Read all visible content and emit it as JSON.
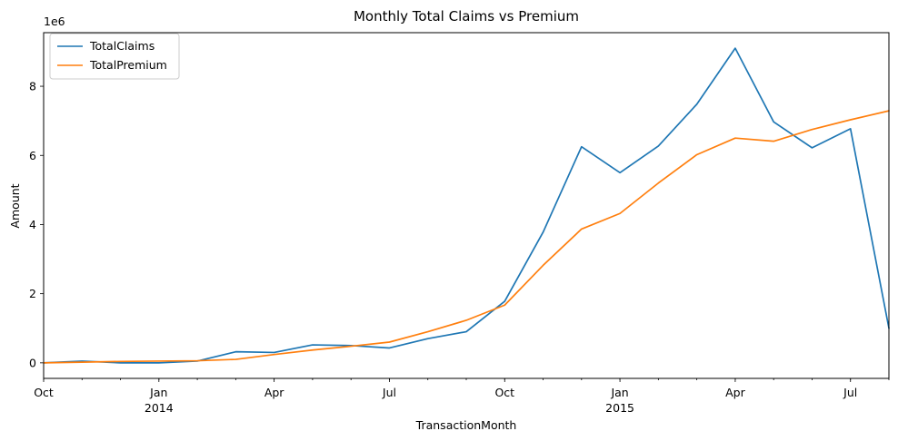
{
  "chart_data": {
    "type": "line",
    "title": "Monthly Total Claims vs Premium",
    "xlabel": "TransactionMonth",
    "ylabel": "Amount",
    "y_offset_label": "1e6",
    "x": [
      "2013-10",
      "2013-11",
      "2013-12",
      "2014-01",
      "2014-02",
      "2014-03",
      "2014-04",
      "2014-05",
      "2014-06",
      "2014-07",
      "2014-08",
      "2014-09",
      "2014-10",
      "2014-11",
      "2014-12",
      "2015-01",
      "2015-02",
      "2015-03",
      "2015-04",
      "2015-05",
      "2015-06",
      "2015-07",
      "2015-08"
    ],
    "series": [
      {
        "name": "TotalClaims",
        "color": "#1f77b4",
        "values": [
          0.0,
          0.05,
          0.0,
          0.0,
          0.05,
          0.32,
          0.3,
          0.52,
          0.5,
          0.43,
          0.7,
          0.9,
          1.78,
          3.78,
          6.25,
          5.5,
          6.27,
          7.48,
          9.1,
          6.97,
          6.22,
          6.77,
          1.0
        ]
      },
      {
        "name": "TotalPremium",
        "color": "#ff7f0e",
        "values": [
          0.0,
          0.02,
          0.04,
          0.05,
          0.06,
          0.1,
          0.24,
          0.37,
          0.48,
          0.6,
          0.9,
          1.23,
          1.67,
          2.82,
          3.87,
          4.32,
          5.2,
          6.02,
          6.5,
          6.41,
          6.75,
          7.03,
          7.29
        ]
      }
    ],
    "xlim": [
      "2013-10",
      "2015-08"
    ],
    "ylim": [
      -0.45,
      9.55
    ],
    "y_ticks": [
      0,
      2,
      4,
      6,
      8
    ],
    "x_ticks": [
      {
        "x": "2013-10",
        "label": "Oct",
        "year": ""
      },
      {
        "x": "2014-01",
        "label": "Jan",
        "year": "2014"
      },
      {
        "x": "2014-04",
        "label": "Apr",
        "year": ""
      },
      {
        "x": "2014-07",
        "label": "Jul",
        "year": ""
      },
      {
        "x": "2014-10",
        "label": "Oct",
        "year": ""
      },
      {
        "x": "2015-01",
        "label": "Jan",
        "year": "2015"
      },
      {
        "x": "2015-04",
        "label": "Apr",
        "year": ""
      },
      {
        "x": "2015-07",
        "label": "Jul",
        "year": ""
      }
    ],
    "grid": false,
    "legend": "top-left"
  }
}
